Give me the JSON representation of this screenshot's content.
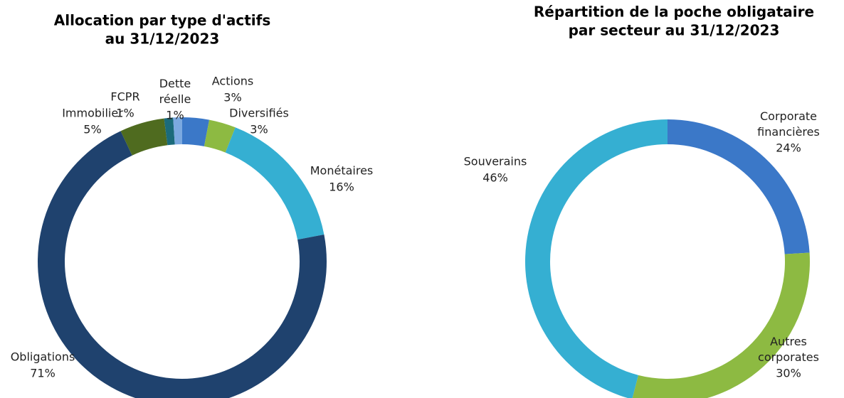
{
  "chart_data": [
    {
      "type": "donut",
      "title": [
        "Allocation par type d'actifs",
        "au 31/12/2023"
      ],
      "categories": [
        "Actions",
        "Diversifiés",
        "Monétaires",
        "Obligations",
        "Immobilier",
        "FCPR",
        "Dette réelle"
      ],
      "values": [
        3,
        3,
        16,
        71,
        5,
        1,
        1
      ],
      "value_labels": [
        "3%",
        "3%",
        "16%",
        "71%",
        "5%",
        "1%",
        "1%"
      ],
      "colors": [
        "#3b78c8",
        "#8dba42",
        "#35afd2",
        "#1f426e",
        "#4f6b1f",
        "#1b6b7b",
        "#7ba9e0"
      ]
    },
    {
      "type": "donut",
      "title": [
        "Répartition de la poche obligataire",
        "par secteur au 31/12/2023"
      ],
      "categories": [
        "Corporate financières",
        "Autres corporates",
        "Souverains"
      ],
      "values": [
        24,
        30,
        46
      ],
      "value_labels": [
        "24%",
        "30%",
        "46%"
      ],
      "colors": [
        "#3b78c8",
        "#8dba42",
        "#35afd2"
      ]
    }
  ]
}
